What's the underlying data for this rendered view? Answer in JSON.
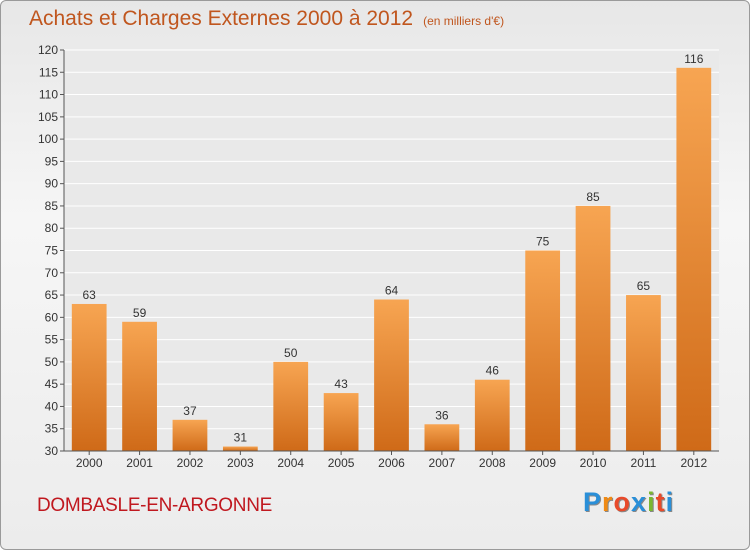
{
  "header": {
    "title": "Achats et Charges Externes 2000 à 2012",
    "unit": "(en milliers d'€)"
  },
  "footer": {
    "commune": "DOMBASLE-EN-ARGONNE",
    "brand_letters": [
      "P",
      "r",
      "o",
      "x",
      "i",
      "t",
      "i"
    ],
    "brand_colors": [
      "#2a8fd8",
      "#f08a14",
      "#e84a2a",
      "#2a8fd8",
      "#7ab730",
      "#e84a2a",
      "#2a8fd8"
    ]
  },
  "colors": {
    "title": "#c0561e",
    "commune": "#c0181f",
    "bar_light": "#f7a552",
    "bar_dark": "#cf6a18"
  },
  "chart_data": {
    "type": "bar",
    "categories": [
      "2000",
      "2001",
      "2002",
      "2003",
      "2004",
      "2005",
      "2006",
      "2007",
      "2008",
      "2009",
      "2010",
      "2011",
      "2012"
    ],
    "values": [
      63,
      59,
      37,
      31,
      50,
      43,
      64,
      36,
      46,
      75,
      85,
      65,
      116
    ],
    "ylim": [
      30,
      120
    ],
    "yticks": [
      30,
      35,
      40,
      45,
      50,
      55,
      60,
      65,
      70,
      75,
      80,
      85,
      90,
      95,
      100,
      105,
      110,
      115,
      120
    ],
    "grid": true,
    "data_labels": true
  }
}
